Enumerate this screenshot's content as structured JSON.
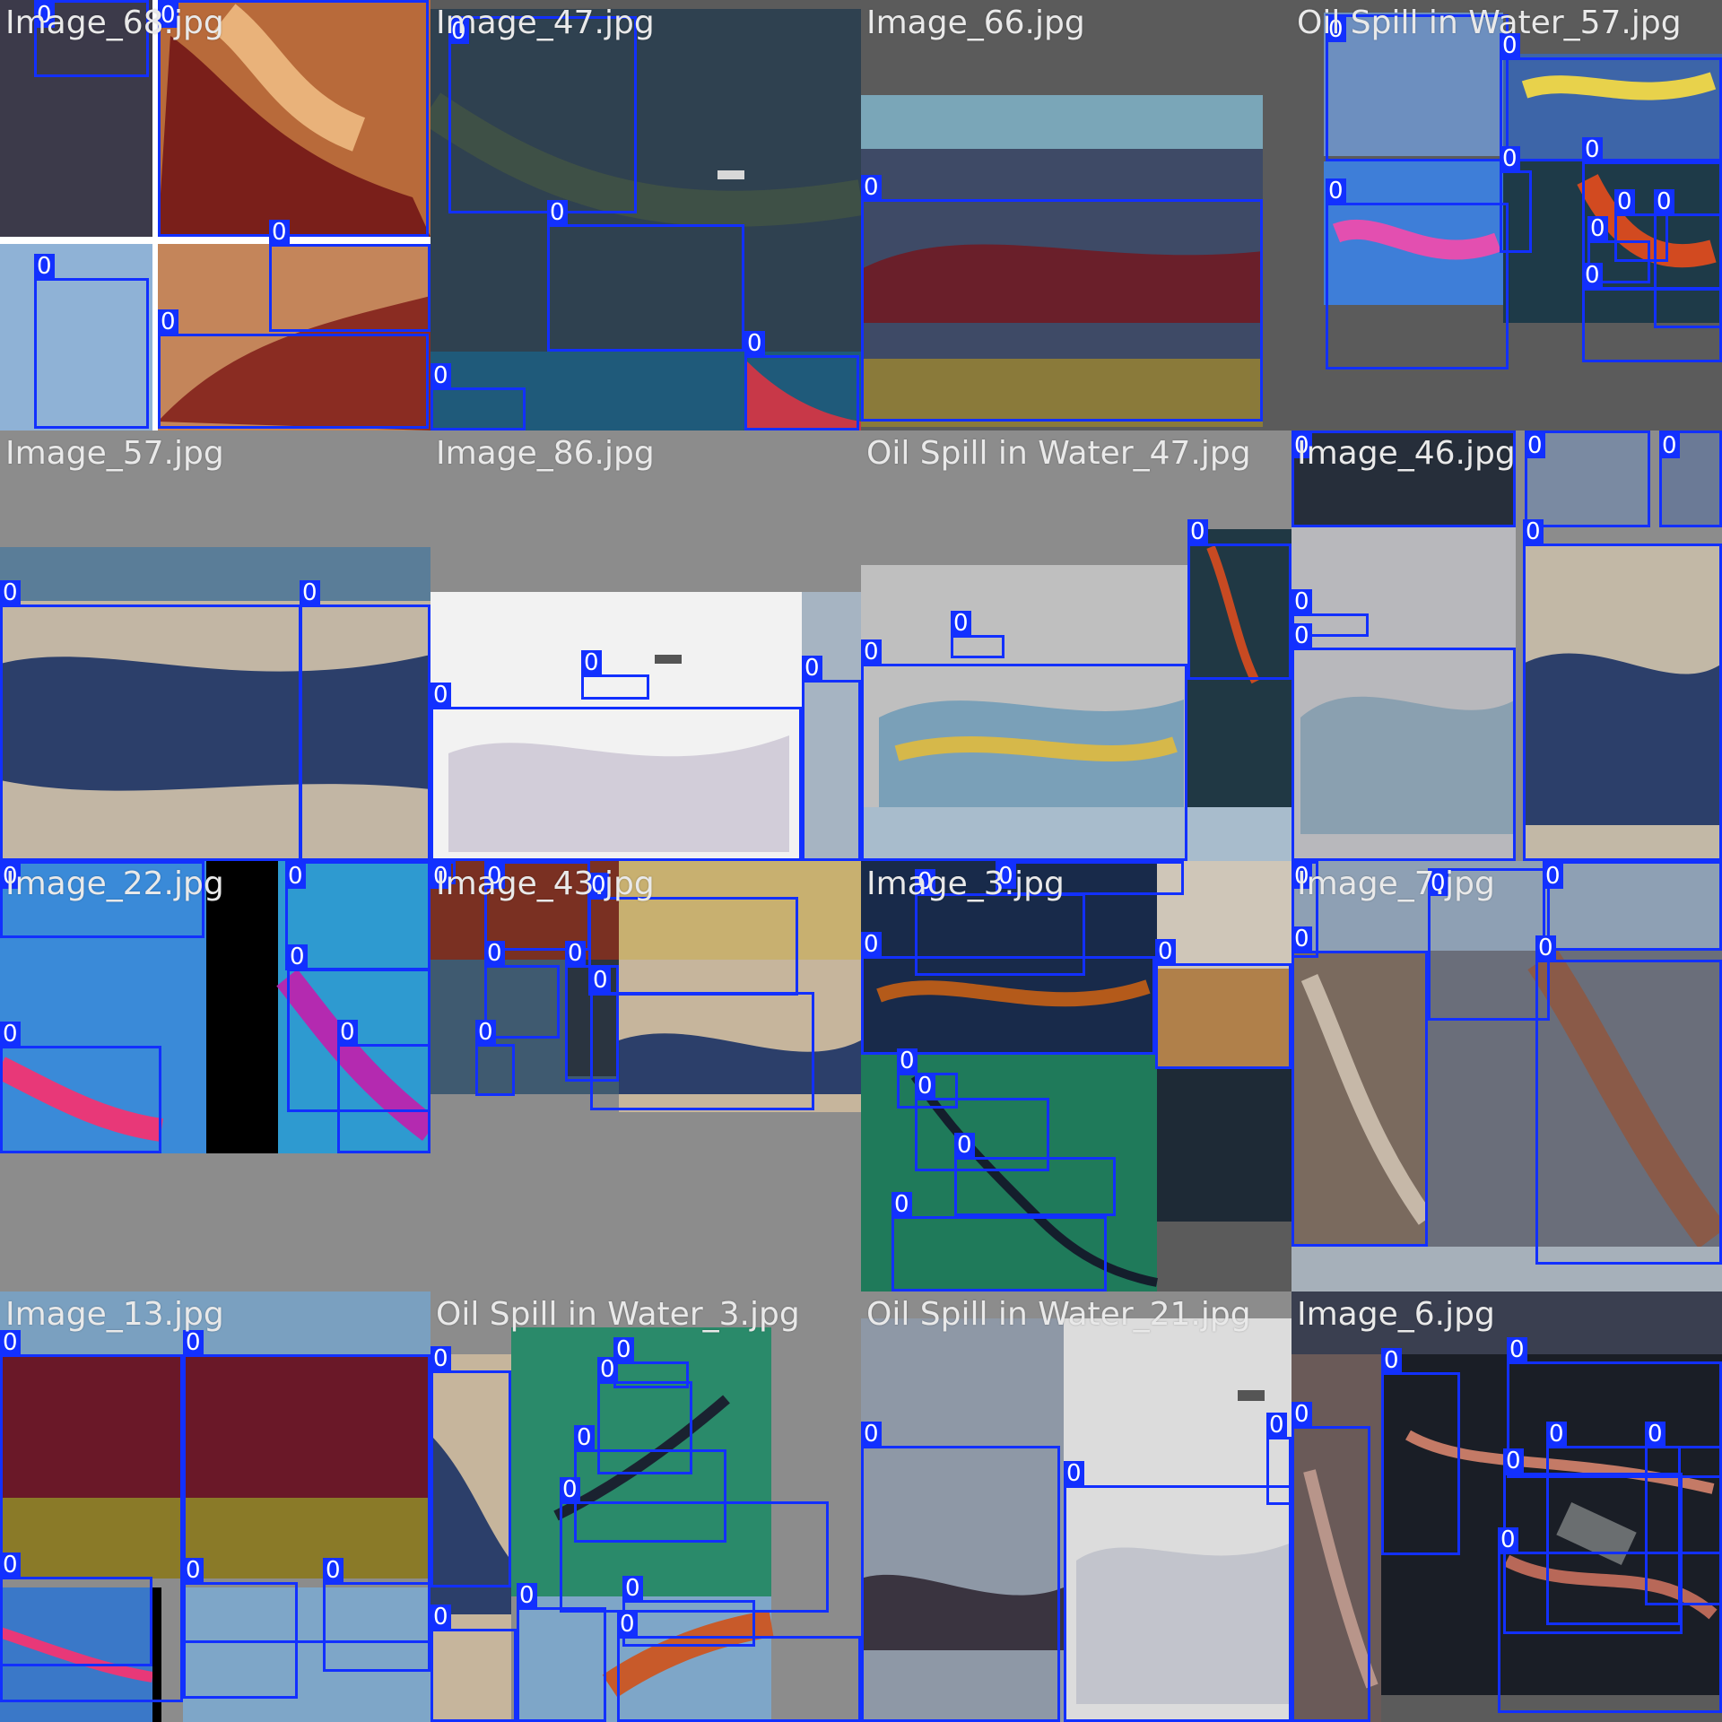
{
  "mosaic": {
    "tiles": [
      {
        "title": "Image_68.jpg",
        "bg": "spill_orange",
        "boxes": [
          {
            "label": "0"
          },
          {
            "label": "0"
          },
          {
            "label": "0"
          },
          {
            "label": "0"
          },
          {
            "label": "0"
          }
        ]
      },
      {
        "title": "Image_47.jpg",
        "bg": "dark_sea",
        "boxes": [
          {
            "label": "0"
          },
          {
            "label": "0"
          },
          {
            "label": "0"
          },
          {
            "label": "0"
          }
        ]
      },
      {
        "title": "Image_66.jpg",
        "bg": "gray_beach",
        "boxes": [
          {
            "label": "0"
          }
        ]
      },
      {
        "title": "Oil Spill in Water_57.jpg",
        "bg": "rainbow",
        "boxes": [
          {
            "label": "0"
          },
          {
            "label": "0"
          },
          {
            "label": "0"
          },
          {
            "label": "0"
          },
          {
            "label": "0"
          },
          {
            "label": "0"
          },
          {
            "label": "0"
          },
          {
            "label": "0"
          },
          {
            "label": "0"
          },
          {
            "label": "0"
          }
        ]
      },
      {
        "title": "Image_57.jpg",
        "bg": "beach_blue",
        "boxes": [
          {
            "label": "0"
          },
          {
            "label": "0"
          },
          {
            "label": "0"
          },
          {
            "label": "0"
          }
        ]
      },
      {
        "title": "Image_86.jpg",
        "bg": "white_sheen",
        "boxes": [
          {
            "label": "0"
          },
          {
            "label": "0"
          },
          {
            "label": "0"
          },
          {
            "label": "0"
          },
          {
            "label": "0"
          }
        ]
      },
      {
        "title": "Oil Spill in Water_47.jpg",
        "bg": "gray_sheen",
        "boxes": [
          {
            "label": "0"
          },
          {
            "label": "0"
          },
          {
            "label": "0"
          },
          {
            "label": "0"
          }
        ]
      },
      {
        "title": "Image_46.jpg",
        "bg": "gray_sheen2",
        "boxes": [
          {
            "label": "0"
          },
          {
            "label": "0"
          },
          {
            "label": "0"
          },
          {
            "label": "0"
          },
          {
            "label": "0"
          },
          {
            "label": "0"
          },
          {
            "label": "0"
          }
        ]
      },
      {
        "title": "Image_22.jpg",
        "bg": "pink_blue",
        "boxes": [
          {
            "label": "0"
          },
          {
            "label": "0"
          },
          {
            "label": "0"
          },
          {
            "label": "0"
          },
          {
            "label": "0"
          }
        ]
      },
      {
        "title": "Image_43.jpg",
        "bg": "mixed_gray",
        "boxes": [
          {
            "label": "0"
          },
          {
            "label": "0"
          },
          {
            "label": "0"
          },
          {
            "label": "0"
          },
          {
            "label": "0"
          },
          {
            "label": "0"
          },
          {
            "label": "0"
          },
          {
            "label": "0"
          },
          {
            "label": "0"
          },
          {
            "label": "0"
          }
        ]
      },
      {
        "title": "Image_3.jpg",
        "bg": "green_dark",
        "boxes": [
          {
            "label": "0"
          },
          {
            "label": "0"
          },
          {
            "label": "0"
          },
          {
            "label": "0"
          },
          {
            "label": "0"
          },
          {
            "label": "0"
          },
          {
            "label": "0"
          },
          {
            "label": "0"
          },
          {
            "label": "0"
          },
          {
            "label": "0"
          }
        ]
      },
      {
        "title": "Image_7.jpg",
        "bg": "gray_brown",
        "boxes": [
          {
            "label": "0"
          },
          {
            "label": "0"
          },
          {
            "label": "0"
          },
          {
            "label": "0"
          },
          {
            "label": "0"
          },
          {
            "label": "0"
          },
          {
            "label": "0"
          }
        ]
      },
      {
        "title": "Image_13.jpg",
        "bg": "brown_yellow",
        "boxes": [
          {
            "label": "0"
          },
          {
            "label": "0"
          },
          {
            "label": "0"
          },
          {
            "label": "0"
          },
          {
            "label": "0"
          }
        ]
      },
      {
        "title": "Oil Spill in Water_3.jpg",
        "bg": "green_sea",
        "boxes": [
          {
            "label": "0"
          },
          {
            "label": "0"
          },
          {
            "label": "0"
          },
          {
            "label": "0"
          },
          {
            "label": "0"
          },
          {
            "label": "0"
          },
          {
            "label": "0"
          },
          {
            "label": "0"
          },
          {
            "label": "0"
          }
        ]
      },
      {
        "title": "Oil Spill in Water_21.jpg",
        "bg": "gray_sea",
        "boxes": [
          {
            "label": "0"
          },
          {
            "label": "0"
          },
          {
            "label": "0"
          }
        ]
      },
      {
        "title": "Image_6.jpg",
        "bg": "dark_brown",
        "boxes": [
          {
            "label": "0"
          },
          {
            "label": "0"
          },
          {
            "label": "0"
          },
          {
            "label": "0"
          },
          {
            "label": "0"
          },
          {
            "label": "0"
          },
          {
            "label": "0"
          },
          {
            "label": "0"
          }
        ]
      }
    ]
  }
}
